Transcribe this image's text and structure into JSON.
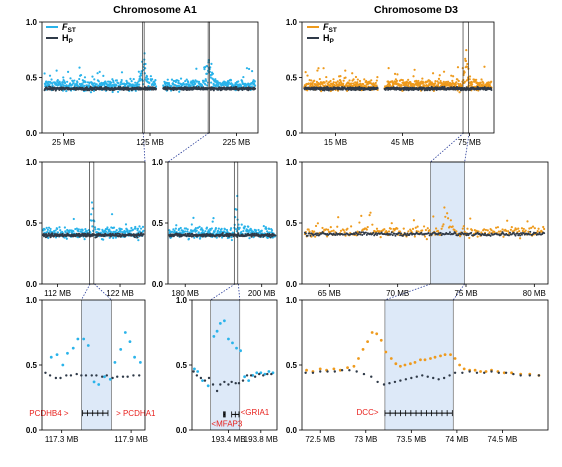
{
  "titles": {
    "a1": "Chromosome A1",
    "d3": "Chromosome D3"
  },
  "legend": {
    "fst_letter": "F",
    "fst_sub": "ST",
    "hp_letter": "H",
    "hp_sub": "P"
  },
  "colors": {
    "a1_fst": "#29b3ea",
    "d3_fst": "#ee9a1c",
    "hp": "#2f3a48",
    "highlight": "#dde9f8",
    "gene": "#e8201c"
  },
  "chart_data": [
    {
      "id": "a1_full",
      "type": "scatter",
      "series": [
        "FST",
        "Hp"
      ],
      "ylim": [
        0,
        1
      ],
      "yticks": [
        "0.0",
        "0.5",
        "1.0"
      ],
      "xlim": [
        0,
        250
      ],
      "xticks": [
        {
          "v": 25,
          "label": "25 MB"
        },
        {
          "v": 125,
          "label": "125 MB"
        },
        {
          "v": 225,
          "label": "225 MB"
        }
      ],
      "regions": [
        [
          117.2,
          117.9
        ],
        [
          193.0,
          193.9
        ]
      ],
      "fst_mean": 0.43,
      "hp_mean": 0.4
    },
    {
      "id": "d3_full",
      "type": "scatter",
      "series": [
        "FST",
        "Hp"
      ],
      "ylim": [
        0,
        1
      ],
      "yticks": [
        "0.0",
        "0.5",
        "1.0"
      ],
      "xlim": [
        0,
        86
      ],
      "xticks": [
        {
          "v": 15,
          "label": "15 MB"
        },
        {
          "v": 45,
          "label": "45 MB"
        },
        {
          "v": 75,
          "label": "75 MB"
        }
      ],
      "regions": [
        [
          72.4,
          74.9
        ]
      ],
      "fst_mean": 0.43,
      "hp_mean": 0.4
    },
    {
      "id": "a1_z1",
      "type": "scatter",
      "ylim": [
        0,
        1
      ],
      "yticks": [
        "0.0",
        "0.5",
        "1.0"
      ],
      "xlim": [
        109.5,
        126
      ],
      "xticks": [
        {
          "v": 112,
          "label": "112 MB"
        },
        {
          "v": 122,
          "label": "122 MB"
        }
      ],
      "regions": [
        [
          117.2,
          117.9
        ]
      ],
      "fst_mean": 0.42,
      "hp_mean": 0.4
    },
    {
      "id": "a1_z2",
      "type": "scatter",
      "ylim": [
        0,
        1
      ],
      "yticks": [
        "0.0",
        "0.5",
        "1.0"
      ],
      "xlim": [
        175.5,
        204
      ],
      "xticks": [
        {
          "v": 180,
          "label": "180 MB"
        },
        {
          "v": 200,
          "label": "200 MB"
        }
      ],
      "regions": [
        [
          193.0,
          193.9
        ]
      ],
      "fst_mean": 0.42,
      "hp_mean": 0.4
    },
    {
      "id": "d3_z1",
      "type": "scatter",
      "ylim": [
        0,
        1
      ],
      "yticks": [
        "0.0",
        "0.5",
        "1.0"
      ],
      "xlim": [
        63,
        81
      ],
      "xticks": [
        {
          "v": 65,
          "label": "65 MB"
        },
        {
          "v": 70,
          "label": "70 MB"
        },
        {
          "v": 75,
          "label": "75 MB"
        },
        {
          "v": 80,
          "label": "80 MB"
        }
      ],
      "regions": [
        [
          72.4,
          74.9
        ]
      ],
      "fst_mean": 0.43,
      "hp_mean": 0.41
    },
    {
      "id": "a1_d1",
      "type": "scatter",
      "ylim": [
        0,
        1
      ],
      "yticks": [
        "0.0",
        "0.5",
        "1.0"
      ],
      "xlim": [
        117.13,
        118.02
      ],
      "xticks": [
        {
          "v": 117.3,
          "label": "117.3 MB"
        },
        {
          "v": 117.9,
          "label": "117.9 MB"
        }
      ],
      "regions": [
        [
          117.47,
          117.73
        ]
      ],
      "fst": [
        [
          117.21,
          0.56
        ],
        [
          117.26,
          0.58
        ],
        [
          117.31,
          0.5
        ],
        [
          117.35,
          0.59
        ],
        [
          117.4,
          0.63
        ],
        [
          117.44,
          0.7
        ],
        [
          117.49,
          0.7
        ],
        [
          117.53,
          0.65
        ],
        [
          117.58,
          0.37
        ],
        [
          117.62,
          0.35
        ],
        [
          117.67,
          0.41
        ],
        [
          117.72,
          0.39
        ],
        [
          117.76,
          0.52
        ],
        [
          117.81,
          0.62
        ],
        [
          117.85,
          0.75
        ],
        [
          117.89,
          0.68
        ],
        [
          117.93,
          0.56
        ],
        [
          117.98,
          0.52
        ]
      ],
      "hp": [
        [
          117.16,
          0.44
        ],
        [
          117.2,
          0.42
        ],
        [
          117.25,
          0.4
        ],
        [
          117.29,
          0.4
        ],
        [
          117.34,
          0.42
        ],
        [
          117.38,
          0.42
        ],
        [
          117.43,
          0.43
        ],
        [
          117.47,
          0.42
        ],
        [
          117.51,
          0.42
        ],
        [
          117.56,
          0.42
        ],
        [
          117.6,
          0.42
        ],
        [
          117.65,
          0.41
        ],
        [
          117.69,
          0.42
        ],
        [
          117.74,
          0.4
        ],
        [
          117.78,
          0.41
        ],
        [
          117.83,
          0.41
        ],
        [
          117.87,
          0.41
        ],
        [
          117.92,
          0.42
        ],
        [
          117.97,
          0.42
        ]
      ],
      "genes": [
        {
          "label": "PCDHB4",
          "dir": ">",
          "x": 117.49,
          "textX": 117.36,
          "textY": 0.13
        },
        {
          "label": "PCDHA1",
          "dir": ">",
          "x": 117.72,
          "textX": 117.77,
          "textY": 0.13
        }
      ],
      "track": [
        {
          "x1": 117.48,
          "x2": 117.7
        }
      ]
    },
    {
      "id": "a1_d2",
      "type": "scatter",
      "ylim": [
        0,
        1
      ],
      "yticks": [
        "0.0",
        "0.5",
        "1.0"
      ],
      "xlim": [
        192.95,
        194.0
      ],
      "xticks": [
        {
          "v": 193.4,
          "label": "193.4 MB"
        },
        {
          "v": 193.8,
          "label": "193.8 MB"
        }
      ],
      "regions": [
        [
          193.18,
          193.54
        ]
      ],
      "fst": [
        [
          192.98,
          0.47
        ],
        [
          193.02,
          0.45
        ],
        [
          193.08,
          0.38
        ],
        [
          193.15,
          0.34
        ],
        [
          193.22,
          0.72
        ],
        [
          193.26,
          0.76
        ],
        [
          193.3,
          0.82
        ],
        [
          193.35,
          0.84
        ],
        [
          193.4,
          0.7
        ],
        [
          193.45,
          0.67
        ],
        [
          193.5,
          0.63
        ],
        [
          193.55,
          0.61
        ],
        [
          193.6,
          0.41
        ],
        [
          193.65,
          0.38
        ],
        [
          193.7,
          0.42
        ],
        [
          193.75,
          0.44
        ],
        [
          193.8,
          0.44
        ],
        [
          193.85,
          0.43
        ],
        [
          193.9,
          0.45
        ],
        [
          193.95,
          0.44
        ]
      ],
      "hp": [
        [
          192.97,
          0.45
        ],
        [
          193.01,
          0.42
        ],
        [
          193.06,
          0.4
        ],
        [
          193.11,
          0.38
        ],
        [
          193.16,
          0.4
        ],
        [
          193.21,
          0.35
        ],
        [
          193.26,
          0.3
        ],
        [
          193.3,
          0.35
        ],
        [
          193.35,
          0.37
        ],
        [
          193.4,
          0.35
        ],
        [
          193.44,
          0.37
        ],
        [
          193.49,
          0.36
        ],
        [
          193.53,
          0.36
        ],
        [
          193.58,
          0.38
        ],
        [
          193.63,
          0.42
        ],
        [
          193.68,
          0.42
        ],
        [
          193.73,
          0.41
        ],
        [
          193.78,
          0.43
        ],
        [
          193.83,
          0.42
        ],
        [
          193.88,
          0.43
        ],
        [
          193.93,
          0.43
        ]
      ],
      "genes": [
        {
          "label": "MFAP3",
          "dir": "<",
          "x": 193.35,
          "textX": 193.19,
          "textY": 0.05
        },
        {
          "label": "GRIA1",
          "dir": "<",
          "x": 193.52,
          "textX": 193.55,
          "textY": 0.14
        }
      ],
      "track": [
        {
          "x1": 193.34,
          "x2": 193.36
        },
        {
          "x1": 193.44,
          "x2": 193.53
        }
      ]
    },
    {
      "id": "d3_d1",
      "type": "scatter",
      "ylim": [
        0,
        1
      ],
      "yticks": [
        "0.0",
        "0.5",
        "1.0"
      ],
      "xlim": [
        72.3,
        75.0
      ],
      "xticks": [
        {
          "v": 72.5,
          "label": "72.5 MB"
        },
        {
          "v": 73,
          "label": "73 MB"
        },
        {
          "v": 73.5,
          "label": "73.5 MB"
        },
        {
          "v": 74,
          "label": "74 MB"
        },
        {
          "v": 74.5,
          "label": "74.5 MB"
        }
      ],
      "regions": [
        [
          73.21,
          73.96
        ]
      ],
      "fst": [
        [
          72.35,
          0.46
        ],
        [
          72.42,
          0.45
        ],
        [
          72.5,
          0.47
        ],
        [
          72.57,
          0.46
        ],
        [
          72.65,
          0.47
        ],
        [
          72.72,
          0.46
        ],
        [
          72.8,
          0.48
        ],
        [
          72.87,
          0.49
        ],
        [
          72.92,
          0.55
        ],
        [
          72.97,
          0.62
        ],
        [
          73.02,
          0.68
        ],
        [
          73.07,
          0.75
        ],
        [
          73.12,
          0.74
        ],
        [
          73.17,
          0.69
        ],
        [
          73.22,
          0.6
        ],
        [
          73.28,
          0.55
        ],
        [
          73.33,
          0.51
        ],
        [
          73.38,
          0.49
        ],
        [
          73.43,
          0.5
        ],
        [
          73.49,
          0.51
        ],
        [
          73.54,
          0.52
        ],
        [
          73.6,
          0.54
        ],
        [
          73.65,
          0.54
        ],
        [
          73.71,
          0.55
        ],
        [
          73.76,
          0.56
        ],
        [
          73.82,
          0.57
        ],
        [
          73.87,
          0.58
        ],
        [
          73.93,
          0.58
        ],
        [
          73.98,
          0.55
        ],
        [
          74.03,
          0.5
        ],
        [
          74.08,
          0.47
        ],
        [
          74.14,
          0.46
        ],
        [
          74.2,
          0.46
        ],
        [
          74.26,
          0.45
        ],
        [
          74.32,
          0.45
        ],
        [
          74.38,
          0.46
        ],
        [
          74.45,
          0.45
        ],
        [
          74.52,
          0.44
        ],
        [
          74.6,
          0.44
        ],
        [
          74.7,
          0.43
        ],
        [
          74.8,
          0.43
        ],
        [
          74.9,
          0.42
        ]
      ],
      "hp": [
        [
          72.34,
          0.44
        ],
        [
          72.42,
          0.44
        ],
        [
          72.5,
          0.45
        ],
        [
          72.58,
          0.45
        ],
        [
          72.66,
          0.45
        ],
        [
          72.74,
          0.46
        ],
        [
          72.82,
          0.46
        ],
        [
          72.9,
          0.45
        ],
        [
          72.98,
          0.43
        ],
        [
          73.06,
          0.41
        ],
        [
          73.13,
          0.37
        ],
        [
          73.2,
          0.35
        ],
        [
          73.26,
          0.36
        ],
        [
          73.32,
          0.37
        ],
        [
          73.38,
          0.38
        ],
        [
          73.44,
          0.39
        ],
        [
          73.5,
          0.4
        ],
        [
          73.56,
          0.41
        ],
        [
          73.62,
          0.42
        ],
        [
          73.68,
          0.41
        ],
        [
          73.74,
          0.4
        ],
        [
          73.8,
          0.39
        ],
        [
          73.86,
          0.4
        ],
        [
          73.92,
          0.42
        ],
        [
          73.98,
          0.44
        ],
        [
          74.06,
          0.44
        ],
        [
          74.14,
          0.45
        ],
        [
          74.22,
          0.44
        ],
        [
          74.3,
          0.44
        ],
        [
          74.38,
          0.45
        ],
        [
          74.46,
          0.44
        ],
        [
          74.54,
          0.44
        ],
        [
          74.62,
          0.43
        ],
        [
          74.7,
          0.42
        ],
        [
          74.8,
          0.42
        ],
        [
          74.9,
          0.42
        ]
      ],
      "genes": [
        {
          "label": "DCC",
          "dir": ">",
          "x": 73.21,
          "textX": 73.14,
          "textY": 0.14
        }
      ],
      "track": [
        {
          "x1": 73.21,
          "x2": 73.95
        }
      ]
    }
  ]
}
